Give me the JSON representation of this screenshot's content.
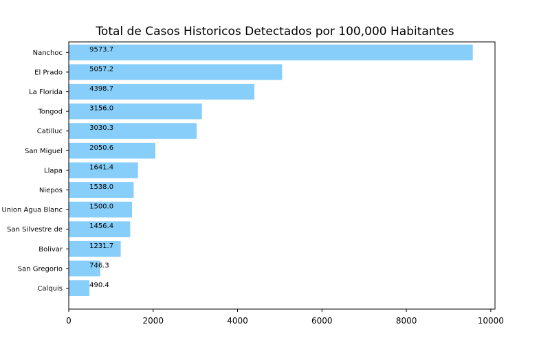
{
  "chart_data": {
    "type": "bar",
    "orientation": "horizontal",
    "title": "Total de Casos Historicos Detectados por 100,000 Habitantes",
    "xlabel": "",
    "ylabel": "",
    "xlim": [
      0,
      10100
    ],
    "xticks": [
      0,
      2000,
      4000,
      6000,
      8000,
      10000
    ],
    "xtick_labels": [
      "0",
      "2000",
      "4000",
      "6000",
      "8000",
      "10000"
    ],
    "grid": false,
    "bar_color": "#87cefa",
    "categories": [
      "Nanchoc",
      "El Prado",
      "La Florida",
      "Tongod",
      "Catilluc",
      "San Miguel",
      "Llapa",
      "Niepos",
      "Union Agua Blanc",
      "San Silvestre de",
      "Bolivar",
      "San Gregorio",
      "Calquis"
    ],
    "values": [
      9573.7,
      5057.2,
      4398.7,
      3156.0,
      3030.3,
      2050.6,
      1641.4,
      1538.0,
      1500.0,
      1456.4,
      1231.7,
      746.3,
      490.4
    ],
    "value_labels": [
      "9573.7",
      "5057.2",
      "4398.7",
      "3156.0",
      "3030.3",
      "2050.6",
      "1641.4",
      "1538.0",
      "1500.0",
      "1456.4",
      "1231.7",
      "746.3",
      "490.4"
    ]
  }
}
